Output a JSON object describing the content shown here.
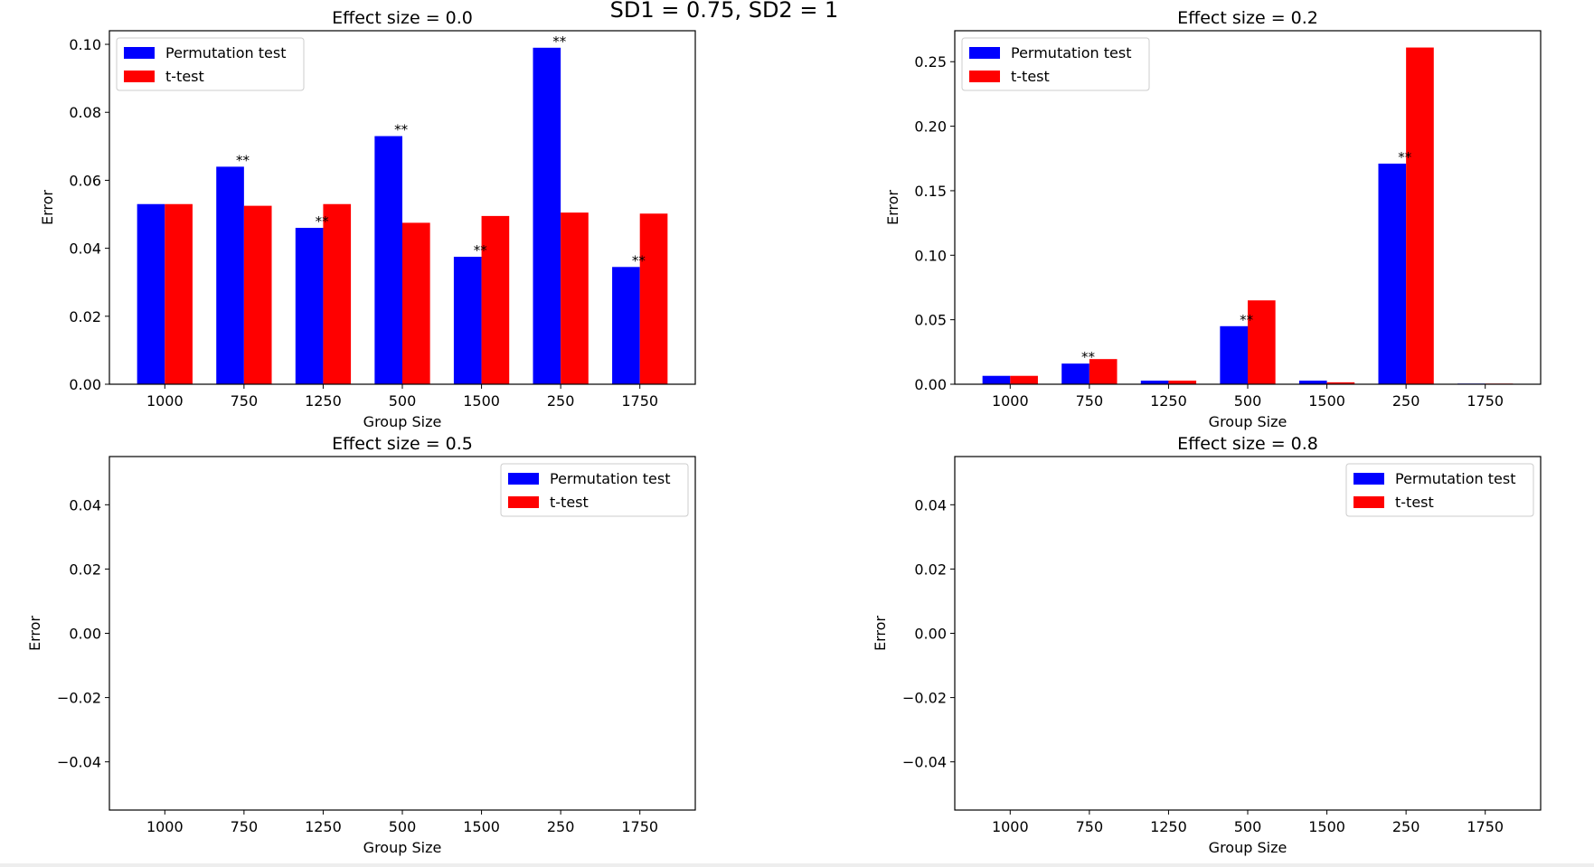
{
  "figure": {
    "suptitle": "SD1 = 0.75, SD2 = 1"
  },
  "chart_data": [
    {
      "type": "bar",
      "title": "Effect size = 0.0",
      "xlabel": "Group Size",
      "ylabel": "Error",
      "categories": [
        "1000",
        "750",
        "1250",
        "500",
        "1500",
        "250",
        "1750"
      ],
      "ylim": [
        0,
        0.104
      ],
      "yticks": [
        0.0,
        0.02,
        0.04,
        0.06,
        0.08,
        0.1
      ],
      "ytick_labels": [
        "0.00",
        "0.02",
        "0.04",
        "0.06",
        "0.08",
        "0.10"
      ],
      "legend_position": "upper-left",
      "series": [
        {
          "name": "Permutation test",
          "color": "#0000ff",
          "values": [
            0.053,
            0.064,
            0.046,
            0.073,
            0.0375,
            0.099,
            0.0345
          ]
        },
        {
          "name": "t-test",
          "color": "#ff0000",
          "values": [
            0.053,
            0.0525,
            0.053,
            0.0475,
            0.0495,
            0.0505,
            0.0502
          ]
        }
      ],
      "annotations": [
        {
          "category": "750",
          "text": "**"
        },
        {
          "category": "1250",
          "text": "**"
        },
        {
          "category": "500",
          "text": "**"
        },
        {
          "category": "1500",
          "text": "**"
        },
        {
          "category": "250",
          "text": "**"
        },
        {
          "category": "1750",
          "text": "**"
        }
      ]
    },
    {
      "type": "bar",
      "title": "Effect size = 0.2",
      "xlabel": "Group Size",
      "ylabel": "Error",
      "categories": [
        "1000",
        "750",
        "1250",
        "500",
        "1500",
        "250",
        "1750"
      ],
      "ylim": [
        0,
        0.274
      ],
      "yticks": [
        0.0,
        0.05,
        0.1,
        0.15,
        0.2,
        0.25
      ],
      "ytick_labels": [
        "0.00",
        "0.05",
        "0.10",
        "0.15",
        "0.20",
        "0.25"
      ],
      "legend_position": "upper-left",
      "series": [
        {
          "name": "Permutation test",
          "color": "#0000ff",
          "values": [
            0.0065,
            0.016,
            0.0028,
            0.045,
            0.0028,
            0.171,
            0.0005
          ]
        },
        {
          "name": "t-test",
          "color": "#ff0000",
          "values": [
            0.0065,
            0.0195,
            0.0028,
            0.065,
            0.0015,
            0.261,
            0.0005
          ]
        }
      ],
      "annotations": [
        {
          "category": "750",
          "text": "**"
        },
        {
          "category": "500",
          "text": "**"
        },
        {
          "category": "250",
          "text": "**"
        }
      ]
    },
    {
      "type": "bar",
      "title": "Effect size = 0.5",
      "xlabel": "Group Size",
      "ylabel": "Error",
      "categories": [
        "1000",
        "750",
        "1250",
        "500",
        "1500",
        "250",
        "1750"
      ],
      "ylim": [
        -0.055,
        0.055
      ],
      "yticks": [
        -0.04,
        -0.02,
        0.0,
        0.02,
        0.04
      ],
      "ytick_labels": [
        "−0.04",
        "−0.02",
        "0.00",
        "0.02",
        "0.04"
      ],
      "legend_position": "upper-right",
      "series": [
        {
          "name": "Permutation test",
          "color": "#0000ff",
          "values": [
            0,
            0,
            0,
            0,
            0,
            0,
            0
          ]
        },
        {
          "name": "t-test",
          "color": "#ff0000",
          "values": [
            0,
            0,
            0,
            0,
            0,
            0,
            0
          ]
        }
      ],
      "annotations": []
    },
    {
      "type": "bar",
      "title": "Effect size = 0.8",
      "xlabel": "Group Size",
      "ylabel": "Error",
      "categories": [
        "1000",
        "750",
        "1250",
        "500",
        "1500",
        "250",
        "1750"
      ],
      "ylim": [
        -0.055,
        0.055
      ],
      "yticks": [
        -0.04,
        -0.02,
        0.0,
        0.02,
        0.04
      ],
      "ytick_labels": [
        "−0.04",
        "−0.02",
        "0.00",
        "0.02",
        "0.04"
      ],
      "legend_position": "upper-right",
      "series": [
        {
          "name": "Permutation test",
          "color": "#0000ff",
          "values": [
            0,
            0,
            0,
            0,
            0,
            0,
            0
          ]
        },
        {
          "name": "t-test",
          "color": "#ff0000",
          "values": [
            0,
            0,
            0,
            0,
            0,
            0,
            0
          ]
        }
      ],
      "annotations": []
    }
  ]
}
